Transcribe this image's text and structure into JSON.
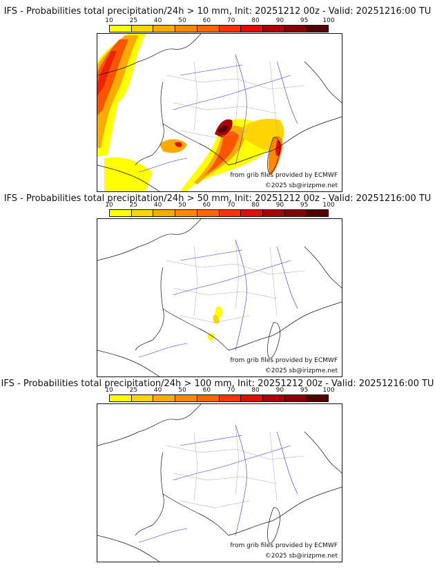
{
  "legend": {
    "ticks": [
      "10",
      "25",
      "40",
      "50",
      "60",
      "70",
      "80",
      "90",
      "95",
      "100"
    ],
    "colors": [
      "#ffff00",
      "#ffd400",
      "#ffaa00",
      "#ff8800",
      "#ff6600",
      "#ff3300",
      "#dd1100",
      "#aa0000",
      "#880000",
      "#550000"
    ]
  },
  "panels": [
    {
      "title": "IFS - Probabilities total precipitation/24h > 10 mm, Init: 20251212 00z - Valid: 20251216:00 TU",
      "credit_source": "from grib files provided by ECMWF",
      "credit_copyright": "©2025 sb@irizpme.net"
    },
    {
      "title": "IFS - Probabilities total precipitation/24h > 50 mm, Init: 20251212 00z - Valid: 20251216:00 TU",
      "credit_source": "from grib files provided by ECMWF",
      "credit_copyright": "©2025 sb@irizpme.net"
    },
    {
      "title": "IFS - Probabilities total precipitation/24h > 100 mm, Init: 20251212 00z - Valid: 20251216:00 TU",
      "credit_source": "from grib files provided by ECMWF",
      "credit_copyright": "©2025 sb@irizpme.net"
    }
  ]
}
